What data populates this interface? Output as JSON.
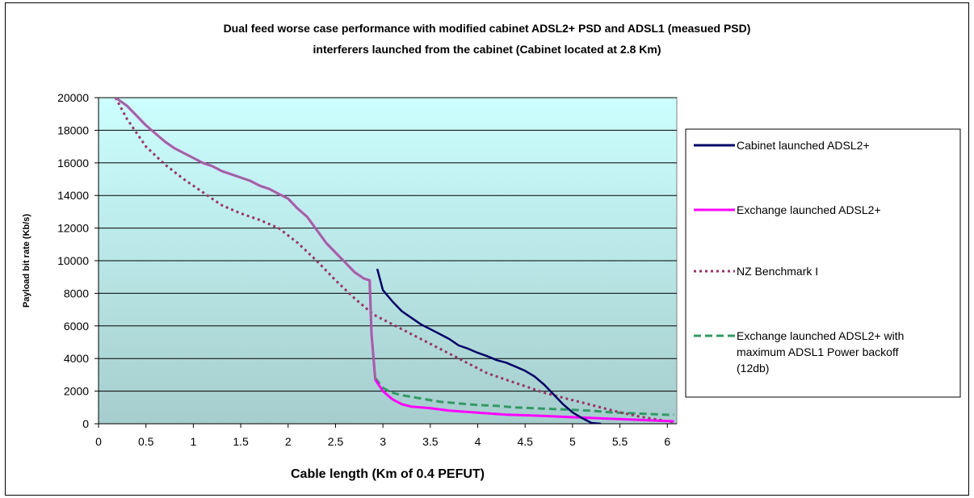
{
  "chart_data": {
    "type": "line",
    "title_lines": [
      "Dual feed worse case performance with modified cabinet ADSL2+ PSD and  ADSL1  (measued PSD)",
      "interferers launched from the cabinet    (Cabinet located at 2.8 Km)"
    ],
    "xlabel": "Cable length (Km of 0.4 PEFUT)",
    "ylabel": "Payload bit rate (Kb/s)",
    "xlim": [
      0,
      6.1
    ],
    "ylim": [
      0,
      20000
    ],
    "x_ticks": [
      "0",
      "0.5",
      "1",
      "1.5",
      "2",
      "2.5",
      "3",
      "3.5",
      "4",
      "4.5",
      "5",
      "5.5",
      "6"
    ],
    "y_ticks": [
      "0",
      "2000",
      "4000",
      "6000",
      "8000",
      "10000",
      "12000",
      "14000",
      "16000",
      "18000",
      "20000"
    ],
    "plot_background": {
      "top": "#ccffff",
      "bottom": "#a6cdcd"
    },
    "grid": "horizontal",
    "legend_position": "right",
    "series": [
      {
        "name": "Cabinet launched ADSL2+",
        "color": "#000066",
        "dash": "solid",
        "x": [
          2.94,
          3.0,
          3.1,
          3.2,
          3.3,
          3.4,
          3.5,
          3.6,
          3.7,
          3.8,
          3.9,
          4.0,
          4.1,
          4.2,
          4.3,
          4.4,
          4.5,
          4.6,
          4.7,
          4.8,
          4.9,
          5.0,
          5.1,
          5.2,
          5.3
        ],
        "values": [
          9500,
          8200,
          7500,
          6900,
          6500,
          6100,
          5800,
          5500,
          5200,
          4800,
          4600,
          4350,
          4150,
          3900,
          3750,
          3500,
          3250,
          2900,
          2400,
          1800,
          1200,
          700,
          350,
          50,
          0
        ]
      },
      {
        "name": "Exchange launched ADSL2+",
        "color": "#ff00ff",
        "dash": "solid",
        "x": [
          0.18,
          0.3,
          0.4,
          0.5,
          0.6,
          0.7,
          0.8,
          0.9,
          1.0,
          1.1,
          1.2,
          1.3,
          1.4,
          1.5,
          1.6,
          1.7,
          1.8,
          1.9,
          2.0,
          2.1,
          2.2,
          2.3,
          2.4,
          2.5,
          2.6,
          2.7,
          2.8,
          2.86,
          2.88,
          2.92,
          3.0,
          3.1,
          3.2,
          3.3,
          3.5,
          3.7,
          4.0,
          4.3,
          4.6,
          5.0,
          5.5,
          6.07
        ],
        "values": [
          20000,
          19500,
          18900,
          18300,
          17800,
          17300,
          16900,
          16600,
          16300,
          16000,
          15800,
          15500,
          15300,
          15100,
          14900,
          14600,
          14400,
          14100,
          13800,
          13200,
          12700,
          11900,
          11100,
          10500,
          9900,
          9300,
          8900,
          8800,
          5500,
          2700,
          2000,
          1500,
          1200,
          1050,
          950,
          800,
          680,
          560,
          500,
          400,
          280,
          150
        ]
      },
      {
        "name": "NZ Benchmark I",
        "color": "#993366",
        "dash": "dot",
        "x": [
          0.18,
          0.3,
          0.5,
          0.7,
          0.9,
          1.1,
          1.3,
          1.5,
          1.7,
          1.9,
          2.1,
          2.3,
          2.5,
          2.7,
          2.9,
          3.1,
          3.3,
          3.5,
          3.7,
          3.9,
          4.1,
          4.3,
          4.5,
          4.7,
          4.9,
          5.1,
          5.3,
          5.5,
          5.7,
          5.9,
          6.07
        ],
        "values": [
          20000,
          18700,
          17000,
          15900,
          15000,
          14200,
          13400,
          12900,
          12500,
          12000,
          11100,
          10000,
          8800,
          7700,
          6700,
          6100,
          5500,
          4900,
          4300,
          3700,
          3100,
          2700,
          2300,
          1900,
          1600,
          1300,
          1000,
          700,
          450,
          250,
          100
        ]
      },
      {
        "name": "Exchange launched ADSL2+ with maximum ADSL1 Power backoff (12db)",
        "color": "#339966",
        "dash": "dash",
        "x": [
          2.92,
          3.0,
          3.1,
          3.2,
          3.4,
          3.6,
          3.8,
          4.0,
          4.2,
          4.4,
          4.6,
          4.8,
          5.0,
          5.2,
          5.4,
          5.6,
          5.8,
          6.0,
          6.07
        ],
        "values": [
          2800,
          2200,
          1900,
          1750,
          1550,
          1350,
          1250,
          1150,
          1100,
          1000,
          950,
          900,
          850,
          800,
          700,
          650,
          600,
          550,
          550
        ]
      }
    ],
    "legend": [
      {
        "lines": [
          "Cabinet launched ADSL2+"
        ]
      },
      {
        "lines": [
          "Exchange launched ADSL2+"
        ]
      },
      {
        "lines": [
          "NZ Benchmark I"
        ]
      },
      {
        "lines": [
          "Exchange launched ADSL2+ with",
          "maximum ADSL1 Power backoff",
          "(12db)"
        ]
      }
    ]
  }
}
